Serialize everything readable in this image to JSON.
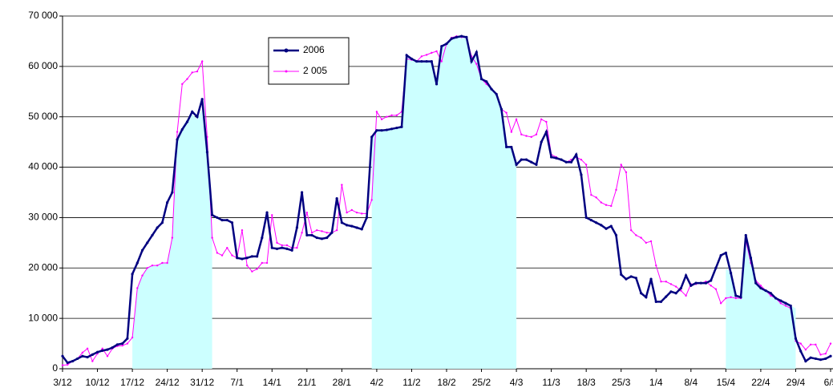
{
  "chart_data": {
    "type": "line",
    "categories": [
      "3/12",
      null,
      null,
      null,
      null,
      null,
      null,
      "10/12",
      null,
      null,
      null,
      null,
      null,
      null,
      "17/12",
      null,
      null,
      null,
      null,
      null,
      null,
      "24/12",
      null,
      null,
      null,
      null,
      null,
      null,
      "31/12",
      null,
      null,
      null,
      null,
      null,
      null,
      "7/1",
      null,
      null,
      null,
      null,
      null,
      null,
      "14/1",
      null,
      null,
      null,
      null,
      null,
      null,
      "21/1",
      null,
      null,
      null,
      null,
      null,
      null,
      "28/1",
      null,
      null,
      null,
      null,
      null,
      null,
      "4/2",
      null,
      null,
      null,
      null,
      null,
      null,
      "11/2",
      null,
      null,
      null,
      null,
      null,
      null,
      "18/2",
      null,
      null,
      null,
      null,
      null,
      null,
      "25/2",
      null,
      null,
      null,
      null,
      null,
      null,
      "4/3",
      null,
      null,
      null,
      null,
      null,
      null,
      "11/3",
      null,
      null,
      null,
      null,
      null,
      null,
      "18/3",
      null,
      null,
      null,
      null,
      null,
      null,
      "25/3",
      null,
      null,
      null,
      null,
      null,
      null,
      "1/4",
      null,
      null,
      null,
      null,
      null,
      null,
      "8/4",
      null,
      null,
      null,
      null,
      null,
      null,
      "15/4",
      null,
      null,
      null,
      null,
      null,
      null,
      "22/4",
      null,
      null,
      null,
      null,
      null,
      null,
      "29/4",
      null,
      null,
      null,
      null,
      null,
      null,
      "6/5"
    ],
    "series": [
      {
        "type": "area",
        "color": "#ccffff",
        "values": [
          null,
          null,
          null,
          null,
          null,
          null,
          null,
          null,
          null,
          null,
          null,
          null,
          null,
          null,
          6000,
          16000,
          18500,
          20000,
          20500,
          20500,
          21000,
          21000,
          26000,
          46000,
          48000,
          49500,
          50500,
          49500,
          51500,
          45000,
          26000,
          null,
          null,
          null,
          null,
          null,
          null,
          null,
          null,
          null,
          null,
          null,
          null,
          null,
          null,
          null,
          null,
          null,
          null,
          null,
          null,
          null,
          null,
          null,
          null,
          null,
          null,
          null,
          null,
          null,
          null,
          null,
          46000,
          47300,
          47300,
          47400,
          47600,
          47800,
          48000,
          62200,
          61500,
          61000,
          61000,
          61000,
          61000,
          56500,
          64000,
          64500,
          65500,
          65800,
          66000,
          65800,
          61000,
          62800,
          57500,
          57000,
          55500,
          54500,
          51500,
          44000,
          44000,
          40500,
          null,
          null,
          null,
          null,
          null,
          null,
          null,
          null,
          null,
          null,
          null,
          null,
          null,
          null,
          null,
          null,
          null,
          null,
          null,
          null,
          null,
          null,
          null,
          null,
          null,
          null,
          null,
          null,
          null,
          null,
          null,
          null,
          null,
          null,
          null,
          null,
          null,
          null,
          null,
          null,
          null,
          20000,
          19000,
          14500,
          14200,
          26500,
          22000,
          17000,
          16000,
          15500,
          15000,
          14000,
          13500,
          13000,
          12500,
          12000,
          null,
          null,
          null,
          null,
          null,
          null,
          null
        ]
      },
      {
        "name": "2 005",
        "color": "#ff00ff",
        "values": [
          700,
          800,
          1500,
          2000,
          3200,
          4000,
          1500,
          3000,
          4000,
          2500,
          4000,
          4500,
          4600,
          5000,
          6200,
          16000,
          18500,
          20000,
          20500,
          20500,
          21000,
          21000,
          26000,
          47000,
          56500,
          57500,
          58800,
          59000,
          61000,
          46000,
          26000,
          23000,
          22500,
          24000,
          22500,
          22000,
          27500,
          20500,
          19300,
          19800,
          21000,
          21000,
          30500,
          25000,
          24500,
          24500,
          24000,
          24000,
          27000,
          31000,
          27000,
          27500,
          27300,
          27000,
          27000,
          27500,
          36500,
          31000,
          31500,
          31000,
          30800,
          30800,
          33500,
          51000,
          49500,
          50000,
          50300,
          50300,
          51000,
          61500,
          61300,
          61000,
          62000,
          62300,
          62700,
          63000,
          61000,
          64500,
          65700,
          66000,
          65800,
          65700,
          62000,
          60500,
          57500,
          56500,
          55500,
          54500,
          51500,
          50800,
          47000,
          49500,
          46500,
          46200,
          46000,
          46500,
          49500,
          49000,
          42500,
          42000,
          41500,
          41000,
          41500,
          42000,
          41500,
          40500,
          34500,
          34000,
          33000,
          32500,
          32300,
          35500,
          40500,
          39000,
          27500,
          26500,
          26000,
          25000,
          25300,
          20500,
          17300,
          17300,
          16800,
          16300,
          15500,
          14500,
          16800,
          16800,
          17000,
          17300,
          16500,
          15800,
          13000,
          14000,
          14200,
          14000,
          14000,
          25500,
          21000,
          17500,
          16500,
          15500,
          14500,
          14000,
          13000,
          12500,
          12000,
          5500,
          5000,
          3800,
          4800,
          4800,
          2800,
          3000,
          5000
        ]
      },
      {
        "name": "2006",
        "color": "#000080",
        "values": [
          2500,
          1200,
          1500,
          2000,
          2500,
          2300,
          2800,
          3300,
          3600,
          3800,
          4200,
          4800,
          5000,
          6000,
          18800,
          21000,
          23500,
          25000,
          26500,
          28000,
          29000,
          33000,
          35000,
          45500,
          47500,
          49000,
          51000,
          50000,
          53500,
          43000,
          30500,
          30000,
          29500,
          29500,
          29000,
          22000,
          21800,
          22000,
          22300,
          22300,
          26000,
          31000,
          24000,
          23800,
          24000,
          23800,
          23500,
          28000,
          35000,
          26500,
          26500,
          26000,
          25800,
          26000,
          27000,
          33800,
          29000,
          28500,
          28300,
          28000,
          27700,
          30000,
          46000,
          47300,
          47300,
          47400,
          47600,
          47800,
          48000,
          62200,
          61500,
          61000,
          61000,
          61000,
          61000,
          56500,
          64000,
          64500,
          65500,
          65800,
          66000,
          65800,
          61000,
          62800,
          57500,
          57000,
          55500,
          54500,
          51500,
          44000,
          44000,
          40500,
          41500,
          41500,
          41000,
          40500,
          45000,
          47000,
          42000,
          41800,
          41500,
          41000,
          41000,
          42500,
          38500,
          30000,
          29500,
          29000,
          28500,
          27800,
          28300,
          26500,
          18700,
          17800,
          18300,
          18000,
          15000,
          14200,
          17800,
          13300,
          13300,
          14300,
          15300,
          15000,
          16000,
          18500,
          16500,
          17000,
          17000,
          17000,
          17500,
          20000,
          22500,
          23000,
          19000,
          14500,
          14200,
          26500,
          22000,
          17000,
          16000,
          15500,
          15000,
          14000,
          13500,
          13000,
          12500,
          6000,
          3500,
          1500,
          2200,
          2000,
          1800,
          2000,
          2500
        ]
      }
    ],
    "ylim": [
      0,
      70000
    ],
    "yticks": [
      0,
      {
        "value": 10000,
        "label": "10 000"
      },
      {
        "value": 20000,
        "label": "20 000"
      },
      {
        "value": 30000,
        "label": "30 000"
      },
      {
        "value": 40000,
        "label": "40 000"
      },
      {
        "value": 50000,
        "label": "50 000"
      },
      {
        "value": 60000,
        "label": "60 000"
      },
      {
        "value": 70000,
        "label": "70 000"
      }
    ],
    "grid": true,
    "legend": "top"
  }
}
